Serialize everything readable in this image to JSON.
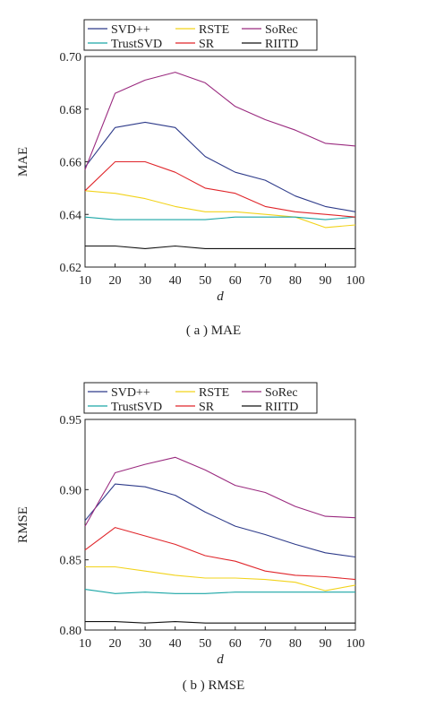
{
  "chart_data": [
    {
      "type": "line",
      "caption": "( a ) MAE",
      "xlabel": "d",
      "ylabel": "MAE",
      "x": [
        10,
        20,
        30,
        40,
        50,
        60,
        70,
        80,
        90,
        100
      ],
      "xlim": [
        10,
        100
      ],
      "ylim": [
        0.62,
        0.7
      ],
      "yticks": [
        "0.62",
        "0.64",
        "0.66",
        "0.68",
        "0.70"
      ],
      "xticks": [
        "10",
        "20",
        "30",
        "40",
        "50",
        "60",
        "70",
        "80",
        "90",
        "100"
      ],
      "legend_position": "top",
      "series": [
        {
          "name": "SVD++",
          "color": "#2e3b8a",
          "values": [
            0.658,
            0.673,
            0.675,
            0.673,
            0.662,
            0.656,
            0.653,
            0.647,
            0.643,
            0.641
          ]
        },
        {
          "name": "RSTE",
          "color": "#f2d31b",
          "values": [
            0.649,
            0.648,
            0.646,
            0.643,
            0.641,
            0.641,
            0.64,
            0.639,
            0.635,
            0.636
          ]
        },
        {
          "name": "SoRec",
          "color": "#9a2a7f",
          "values": [
            0.657,
            0.686,
            0.691,
            0.694,
            0.69,
            0.681,
            0.676,
            0.672,
            0.667,
            0.666
          ]
        },
        {
          "name": "TrustSVD",
          "color": "#1aa6a6",
          "values": [
            0.639,
            0.638,
            0.638,
            0.638,
            0.638,
            0.639,
            0.639,
            0.639,
            0.638,
            0.639
          ]
        },
        {
          "name": "SR",
          "color": "#e0262b",
          "values": [
            0.649,
            0.66,
            0.66,
            0.656,
            0.65,
            0.648,
            0.643,
            0.641,
            0.64,
            0.639
          ]
        },
        {
          "name": "RIITD",
          "color": "#111111",
          "values": [
            0.628,
            0.628,
            0.627,
            0.628,
            0.627,
            0.627,
            0.627,
            0.627,
            0.627,
            0.627
          ]
        }
      ]
    },
    {
      "type": "line",
      "caption": "( b ) RMSE",
      "xlabel": "d",
      "ylabel": "RMSE",
      "x": [
        10,
        20,
        30,
        40,
        50,
        60,
        70,
        80,
        90,
        100
      ],
      "xlim": [
        10,
        100
      ],
      "ylim": [
        0.8,
        0.95
      ],
      "yticks": [
        "0.80",
        "0.85",
        "0.90",
        "0.95"
      ],
      "xticks": [
        "10",
        "20",
        "30",
        "40",
        "50",
        "60",
        "70",
        "80",
        "90",
        "100"
      ],
      "legend_position": "top",
      "series": [
        {
          "name": "SVD++",
          "color": "#2e3b8a",
          "values": [
            0.878,
            0.904,
            0.902,
            0.896,
            0.884,
            0.874,
            0.868,
            0.861,
            0.855,
            0.852
          ]
        },
        {
          "name": "RSTE",
          "color": "#f2d31b",
          "values": [
            0.845,
            0.845,
            0.842,
            0.839,
            0.837,
            0.837,
            0.836,
            0.834,
            0.828,
            0.832
          ]
        },
        {
          "name": "SoRec",
          "color": "#9a2a7f",
          "values": [
            0.874,
            0.912,
            0.918,
            0.923,
            0.914,
            0.903,
            0.898,
            0.888,
            0.881,
            0.88
          ]
        },
        {
          "name": "TrustSVD",
          "color": "#1aa6a6",
          "values": [
            0.829,
            0.826,
            0.827,
            0.826,
            0.826,
            0.827,
            0.827,
            0.827,
            0.827,
            0.827
          ]
        },
        {
          "name": "SR",
          "color": "#e0262b",
          "values": [
            0.857,
            0.873,
            0.867,
            0.861,
            0.853,
            0.849,
            0.842,
            0.839,
            0.838,
            0.836
          ]
        },
        {
          "name": "RIITD",
          "color": "#111111",
          "values": [
            0.806,
            0.806,
            0.805,
            0.806,
            0.805,
            0.805,
            0.805,
            0.805,
            0.805,
            0.805
          ]
        }
      ]
    }
  ]
}
